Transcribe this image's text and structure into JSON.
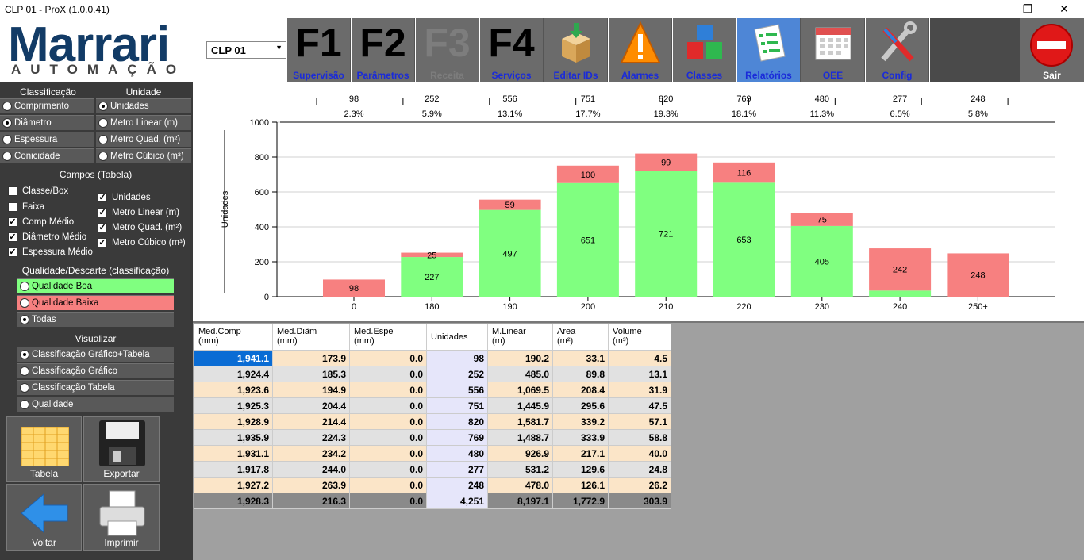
{
  "window": {
    "title": "CLP 01 - ProX (1.0.0.41)",
    "minimize": "—",
    "restore": "❐",
    "close": "✕"
  },
  "logo": {
    "main": "Marrari",
    "sub": "AUTOMAÇÃO"
  },
  "clp_select": {
    "value": "CLP 01"
  },
  "toolbar": [
    {
      "key": "F1",
      "label": "Supervisão"
    },
    {
      "key": "F2",
      "label": "Parâmetros"
    },
    {
      "key": "F3",
      "label": "Receita"
    },
    {
      "key": "F4",
      "label": "Serviços"
    },
    {
      "label": "Editar IDs",
      "icon": "box-icon"
    },
    {
      "label": "Alarmes",
      "icon": "warning-icon"
    },
    {
      "label": "Classes",
      "icon": "cubes-icon"
    },
    {
      "label": "Relatórios",
      "icon": "report-icon"
    },
    {
      "label": "OEE",
      "icon": "calendar-icon"
    },
    {
      "label": "Config",
      "icon": "tools-icon"
    }
  ],
  "exit": {
    "label": "Sair"
  },
  "left": {
    "classificacao": {
      "title": "Classificação",
      "options": [
        "Comprimento",
        "Diâmetro",
        "Espessura",
        "Conicidade"
      ],
      "selected": "Diâmetro"
    },
    "unidade": {
      "title": "Unidade",
      "options": [
        "Unidades",
        "Metro Linear (m)",
        "Metro Quad. (m²)",
        "Metro Cúbico (m³)"
      ],
      "selected": "Unidades"
    },
    "campos": {
      "title": "Campos (Tabela)",
      "left": [
        {
          "label": "Classe/Box",
          "checked": false
        },
        {
          "label": "Faixa",
          "checked": false
        },
        {
          "label": "Comp Médio",
          "checked": true
        },
        {
          "label": "Diâmetro Médio",
          "checked": true
        },
        {
          "label": "Espessura Médio",
          "checked": true
        }
      ],
      "right": [
        {
          "label": "Unidades",
          "checked": true
        },
        {
          "label": "Metro Linear (m)",
          "checked": true
        },
        {
          "label": "Metro Quad. (m²)",
          "checked": true
        },
        {
          "label": "Metro Cúbico (m³)",
          "checked": true
        }
      ]
    },
    "qualidade": {
      "title": "Qualidade/Descarte (classificação)",
      "options": [
        "Qualidade Boa",
        "Qualidade Baixa",
        "Todas"
      ],
      "selected": "Todas"
    },
    "visualizar": {
      "title": "Visualizar",
      "options": [
        "Classificação Gráfico+Tabela",
        "Classificação Gráfico",
        "Classificação Tabela",
        "Qualidade"
      ],
      "selected": "Classificação Gráfico+Tabela"
    },
    "buttons": {
      "tabela": "Tabela",
      "exportar": "Exportar",
      "voltar": "Voltar",
      "imprimir": "Imprimir"
    },
    "check_mark": "✓"
  },
  "chart_data": {
    "type": "bar",
    "stacked": true,
    "ylabel": "Unidades",
    "ylim": [
      0,
      1000
    ],
    "yticks": [
      "0",
      "200",
      "400",
      "600",
      "800",
      "1000"
    ],
    "categories": [
      "0",
      "180",
      "190",
      "200",
      "210",
      "220",
      "230",
      "240",
      "250+"
    ],
    "totals": [
      "98",
      "252",
      "556",
      "751",
      "820",
      "769",
      "480",
      "277",
      "248"
    ],
    "percents": [
      "2.3%",
      "5.9%",
      "13.1%",
      "17.7%",
      "19.3%",
      "18.1%",
      "11.3%",
      "6.5%",
      "5.8%"
    ],
    "series": [
      {
        "name": "Qualidade Boa",
        "color": "#80ff80",
        "values": [
          0,
          227,
          497,
          651,
          721,
          653,
          405,
          35,
          0
        ],
        "labels": [
          "",
          "227",
          "497",
          "651",
          "721",
          "653",
          "405",
          "",
          ""
        ]
      },
      {
        "name": "Qualidade Baixa",
        "color": "#f78080",
        "values": [
          98,
          25,
          59,
          100,
          99,
          116,
          75,
          242,
          248
        ],
        "labels": [
          "98",
          "25",
          "59",
          "100",
          "99",
          "116",
          "75",
          "242",
          "248"
        ]
      }
    ],
    "grid": true
  },
  "table": {
    "headers": [
      [
        "Med.Comp",
        "(mm)"
      ],
      [
        "Med.Diâm",
        "(mm)"
      ],
      [
        "Med.Espe",
        "(mm)"
      ],
      [
        "Unidades",
        ""
      ],
      [
        "M.Linear",
        "(m)"
      ],
      [
        "Area",
        "(m²)"
      ],
      [
        "Volume",
        "(m³)"
      ]
    ],
    "rows": [
      [
        "1,941.1",
        "173.9",
        "0.0",
        "98",
        "190.2",
        "33.1",
        "4.5"
      ],
      [
        "1,924.4",
        "185.3",
        "0.0",
        "252",
        "485.0",
        "89.8",
        "13.1"
      ],
      [
        "1,923.6",
        "194.9",
        "0.0",
        "556",
        "1,069.5",
        "208.4",
        "31.9"
      ],
      [
        "1,925.3",
        "204.4",
        "0.0",
        "751",
        "1,445.9",
        "295.6",
        "47.5"
      ],
      [
        "1,928.9",
        "214.4",
        "0.0",
        "820",
        "1,581.7",
        "339.2",
        "57.1"
      ],
      [
        "1,935.9",
        "224.3",
        "0.0",
        "769",
        "1,488.7",
        "333.9",
        "58.8"
      ],
      [
        "1,931.1",
        "234.2",
        "0.0",
        "480",
        "926.9",
        "217.1",
        "40.0"
      ],
      [
        "1,917.8",
        "244.0",
        "0.0",
        "277",
        "531.2",
        "129.6",
        "24.8"
      ],
      [
        "1,927.2",
        "263.9",
        "0.0",
        "248",
        "478.0",
        "126.1",
        "26.2"
      ]
    ],
    "total": [
      "1,928.3",
      "216.3",
      "0.0",
      "4,251",
      "8,197.1",
      "1,772.9",
      "303.9"
    ]
  }
}
